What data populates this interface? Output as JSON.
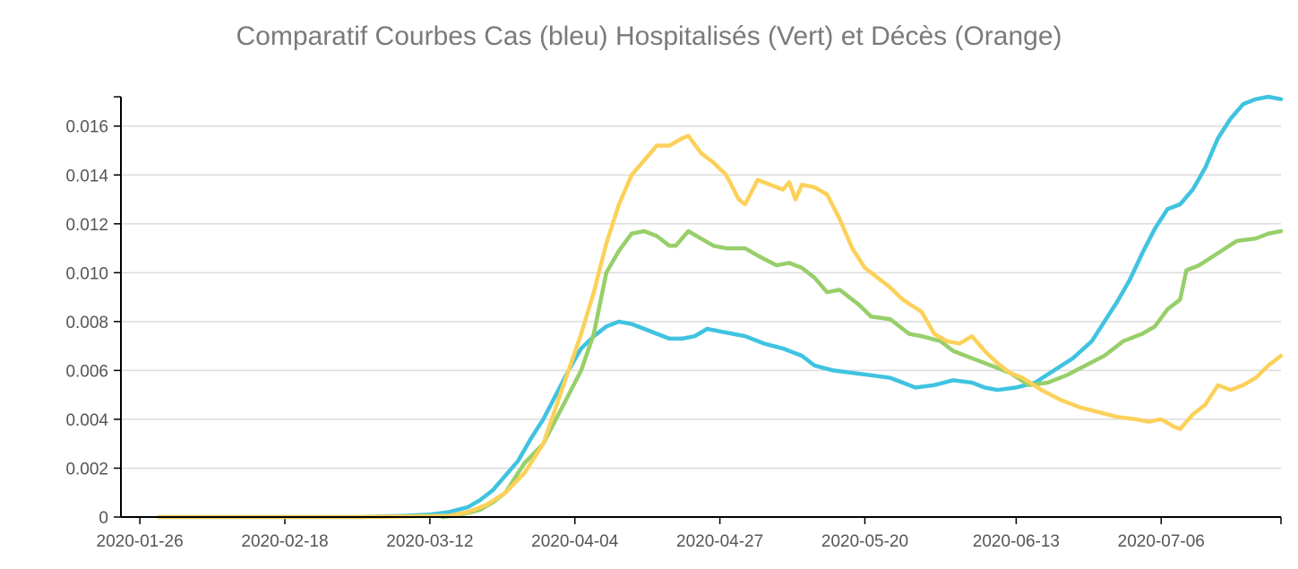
{
  "chart_data": {
    "type": "line",
    "title": "Comparatif Courbes Cas (bleu) Hospitalisés (Vert) et Décès (Orange)",
    "xlabel": "",
    "ylabel": "",
    "ylim": [
      0,
      0.0172
    ],
    "yticks": [
      0,
      0.002,
      0.004,
      0.006,
      0.008,
      0.01,
      0.012,
      0.014,
      0.016
    ],
    "ytick_labels": [
      "0",
      "0.002",
      "0.004",
      "0.006",
      "0.008",
      "0.010",
      "0.012",
      "0.014",
      "0.016"
    ],
    "xlim": [
      "2020-01-23",
      "2020-07-25"
    ],
    "xticks": [
      "2020-01-26",
      "2020-02-18",
      "2020-03-12",
      "2020-04-04",
      "2020-04-27",
      "2020-05-20",
      "2020-06-13",
      "2020-07-06"
    ],
    "grid": true,
    "series": [
      {
        "color": "#3fc3e0",
        "points": [
          [
            "2020-01-29",
            0
          ],
          [
            "2020-03-01",
            0
          ],
          [
            "2020-03-08",
            5e-05
          ],
          [
            "2020-03-12",
            0.0001
          ],
          [
            "2020-03-15",
            0.0002
          ],
          [
            "2020-03-18",
            0.0004
          ],
          [
            "2020-03-20",
            0.0007
          ],
          [
            "2020-03-22",
            0.0011
          ],
          [
            "2020-03-24",
            0.0017
          ],
          [
            "2020-03-26",
            0.0023
          ],
          [
            "2020-03-28",
            0.0032
          ],
          [
            "2020-03-30",
            0.004
          ],
          [
            "2020-04-01",
            0.005
          ],
          [
            "2020-04-03",
            0.006
          ],
          [
            "2020-04-05",
            0.0069
          ],
          [
            "2020-04-07",
            0.0074
          ],
          [
            "2020-04-09",
            0.0078
          ],
          [
            "2020-04-11",
            0.008
          ],
          [
            "2020-04-13",
            0.0079
          ],
          [
            "2020-04-15",
            0.0077
          ],
          [
            "2020-04-17",
            0.0075
          ],
          [
            "2020-04-19",
            0.0073
          ],
          [
            "2020-04-21",
            0.0073
          ],
          [
            "2020-04-23",
            0.0074
          ],
          [
            "2020-04-25",
            0.0077
          ],
          [
            "2020-04-27",
            0.0076
          ],
          [
            "2020-04-29",
            0.0075
          ],
          [
            "2020-05-01",
            0.0074
          ],
          [
            "2020-05-04",
            0.0071
          ],
          [
            "2020-05-07",
            0.0069
          ],
          [
            "2020-05-10",
            0.0066
          ],
          [
            "2020-05-12",
            0.0062
          ],
          [
            "2020-05-15",
            0.006
          ],
          [
            "2020-05-18",
            0.0059
          ],
          [
            "2020-05-21",
            0.0058
          ],
          [
            "2020-05-24",
            0.0057
          ],
          [
            "2020-05-26",
            0.0055
          ],
          [
            "2020-05-28",
            0.0053
          ],
          [
            "2020-05-31",
            0.0054
          ],
          [
            "2020-06-03",
            0.0056
          ],
          [
            "2020-06-06",
            0.0055
          ],
          [
            "2020-06-08",
            0.0053
          ],
          [
            "2020-06-10",
            0.0052
          ],
          [
            "2020-06-13",
            0.0053
          ],
          [
            "2020-06-16",
            0.0055
          ],
          [
            "2020-06-19",
            0.006
          ],
          [
            "2020-06-22",
            0.0065
          ],
          [
            "2020-06-25",
            0.0072
          ],
          [
            "2020-06-27",
            0.008
          ],
          [
            "2020-06-29",
            0.0088
          ],
          [
            "2020-07-01",
            0.0097
          ],
          [
            "2020-07-03",
            0.0108
          ],
          [
            "2020-07-05",
            0.0118
          ],
          [
            "2020-07-07",
            0.0126
          ],
          [
            "2020-07-09",
            0.0128
          ],
          [
            "2020-07-11",
            0.0134
          ],
          [
            "2020-07-13",
            0.0143
          ],
          [
            "2020-07-15",
            0.0155
          ],
          [
            "2020-07-17",
            0.0163
          ],
          [
            "2020-07-19",
            0.0169
          ],
          [
            "2020-07-21",
            0.0171
          ],
          [
            "2020-07-23",
            0.0172
          ],
          [
            "2020-07-25",
            0.0171
          ]
        ]
      },
      {
        "color": "#97cf6a",
        "points": [
          [
            "2020-03-14",
            0
          ],
          [
            "2020-03-17",
            0.0001
          ],
          [
            "2020-03-20",
            0.0003
          ],
          [
            "2020-03-22",
            0.0006
          ],
          [
            "2020-03-24",
            0.001
          ],
          [
            "2020-03-27",
            0.0022
          ],
          [
            "2020-03-30",
            0.003
          ],
          [
            "2020-04-01",
            0.004
          ],
          [
            "2020-04-03",
            0.005
          ],
          [
            "2020-04-05",
            0.006
          ],
          [
            "2020-04-07",
            0.0075
          ],
          [
            "2020-04-09",
            0.01
          ],
          [
            "2020-04-11",
            0.0109
          ],
          [
            "2020-04-13",
            0.0116
          ],
          [
            "2020-04-15",
            0.0117
          ],
          [
            "2020-04-17",
            0.0115
          ],
          [
            "2020-04-19",
            0.0111
          ],
          [
            "2020-04-20",
            0.0111
          ],
          [
            "2020-04-22",
            0.0117
          ],
          [
            "2020-04-24",
            0.0114
          ],
          [
            "2020-04-26",
            0.0111
          ],
          [
            "2020-04-28",
            0.011
          ],
          [
            "2020-05-01",
            0.011
          ],
          [
            "2020-05-03",
            0.0107
          ],
          [
            "2020-05-06",
            0.0103
          ],
          [
            "2020-05-08",
            0.0104
          ],
          [
            "2020-05-10",
            0.0102
          ],
          [
            "2020-05-12",
            0.0098
          ],
          [
            "2020-05-14",
            0.0092
          ],
          [
            "2020-05-16",
            0.0093
          ],
          [
            "2020-05-19",
            0.0087
          ],
          [
            "2020-05-21",
            0.0082
          ],
          [
            "2020-05-24",
            0.0081
          ],
          [
            "2020-05-27",
            0.0075
          ],
          [
            "2020-05-29",
            0.0074
          ],
          [
            "2020-06-01",
            0.0072
          ],
          [
            "2020-06-03",
            0.0068
          ],
          [
            "2020-06-06",
            0.0065
          ],
          [
            "2020-06-09",
            0.0062
          ],
          [
            "2020-06-12",
            0.0059
          ],
          [
            "2020-06-15",
            0.0054
          ],
          [
            "2020-06-18",
            0.0055
          ],
          [
            "2020-06-21",
            0.0058
          ],
          [
            "2020-06-24",
            0.0062
          ],
          [
            "2020-06-27",
            0.0066
          ],
          [
            "2020-06-30",
            0.0072
          ],
          [
            "2020-07-03",
            0.0075
          ],
          [
            "2020-07-05",
            0.0078
          ],
          [
            "2020-07-07",
            0.0085
          ],
          [
            "2020-07-09",
            0.0089
          ],
          [
            "2020-07-10",
            0.0101
          ],
          [
            "2020-07-12",
            0.0103
          ],
          [
            "2020-07-15",
            0.0108
          ],
          [
            "2020-07-18",
            0.0113
          ],
          [
            "2020-07-21",
            0.0114
          ],
          [
            "2020-07-23",
            0.0116
          ],
          [
            "2020-07-25",
            0.0117
          ]
        ]
      },
      {
        "color": "#fcd15a",
        "points": [
          [
            "2020-01-29",
            0
          ],
          [
            "2020-03-01",
            0
          ],
          [
            "2020-03-15",
            5e-05
          ],
          [
            "2020-03-18",
            0.0002
          ],
          [
            "2020-03-21",
            0.0005
          ],
          [
            "2020-03-24",
            0.001
          ],
          [
            "2020-03-27",
            0.0018
          ],
          [
            "2020-03-30",
            0.003
          ],
          [
            "2020-04-01",
            0.0045
          ],
          [
            "2020-04-03",
            0.006
          ],
          [
            "2020-04-05",
            0.0075
          ],
          [
            "2020-04-07",
            0.0092
          ],
          [
            "2020-04-09",
            0.0112
          ],
          [
            "2020-04-11",
            0.0128
          ],
          [
            "2020-04-13",
            0.014
          ],
          [
            "2020-04-15",
            0.0146
          ],
          [
            "2020-04-17",
            0.0152
          ],
          [
            "2020-04-19",
            0.0152
          ],
          [
            "2020-04-21",
            0.0155
          ],
          [
            "2020-04-22",
            0.0156
          ],
          [
            "2020-04-24",
            0.0149
          ],
          [
            "2020-04-26",
            0.0145
          ],
          [
            "2020-04-28",
            0.014
          ],
          [
            "2020-04-30",
            0.013
          ],
          [
            "2020-05-01",
            0.0128
          ],
          [
            "2020-05-03",
            0.0138
          ],
          [
            "2020-05-05",
            0.0136
          ],
          [
            "2020-05-07",
            0.0134
          ],
          [
            "2020-05-08",
            0.0137
          ],
          [
            "2020-05-09",
            0.013
          ],
          [
            "2020-05-10",
            0.0136
          ],
          [
            "2020-05-12",
            0.0135
          ],
          [
            "2020-05-14",
            0.0132
          ],
          [
            "2020-05-16",
            0.0122
          ],
          [
            "2020-05-18",
            0.011
          ],
          [
            "2020-05-20",
            0.0102
          ],
          [
            "2020-05-22",
            0.0098
          ],
          [
            "2020-05-24",
            0.0094
          ],
          [
            "2020-05-26",
            0.0089
          ],
          [
            "2020-05-29",
            0.0084
          ],
          [
            "2020-05-31",
            0.0075
          ],
          [
            "2020-06-02",
            0.0072
          ],
          [
            "2020-06-04",
            0.0071
          ],
          [
            "2020-06-06",
            0.0074
          ],
          [
            "2020-06-08",
            0.0068
          ],
          [
            "2020-06-10",
            0.0063
          ],
          [
            "2020-06-12",
            0.0059
          ],
          [
            "2020-06-14",
            0.0057
          ],
          [
            "2020-06-17",
            0.0052
          ],
          [
            "2020-06-20",
            0.0048
          ],
          [
            "2020-06-23",
            0.0045
          ],
          [
            "2020-06-26",
            0.0043
          ],
          [
            "2020-06-29",
            0.0041
          ],
          [
            "2020-07-02",
            0.004
          ],
          [
            "2020-07-04",
            0.0039
          ],
          [
            "2020-07-06",
            0.004
          ],
          [
            "2020-07-08",
            0.0037
          ],
          [
            "2020-07-09",
            0.0036
          ],
          [
            "2020-07-11",
            0.0042
          ],
          [
            "2020-07-13",
            0.0046
          ],
          [
            "2020-07-15",
            0.0054
          ],
          [
            "2020-07-17",
            0.0052
          ],
          [
            "2020-07-19",
            0.0054
          ],
          [
            "2020-07-21",
            0.0057
          ],
          [
            "2020-07-23",
            0.0062
          ],
          [
            "2020-07-25",
            0.0066
          ]
        ]
      }
    ]
  }
}
